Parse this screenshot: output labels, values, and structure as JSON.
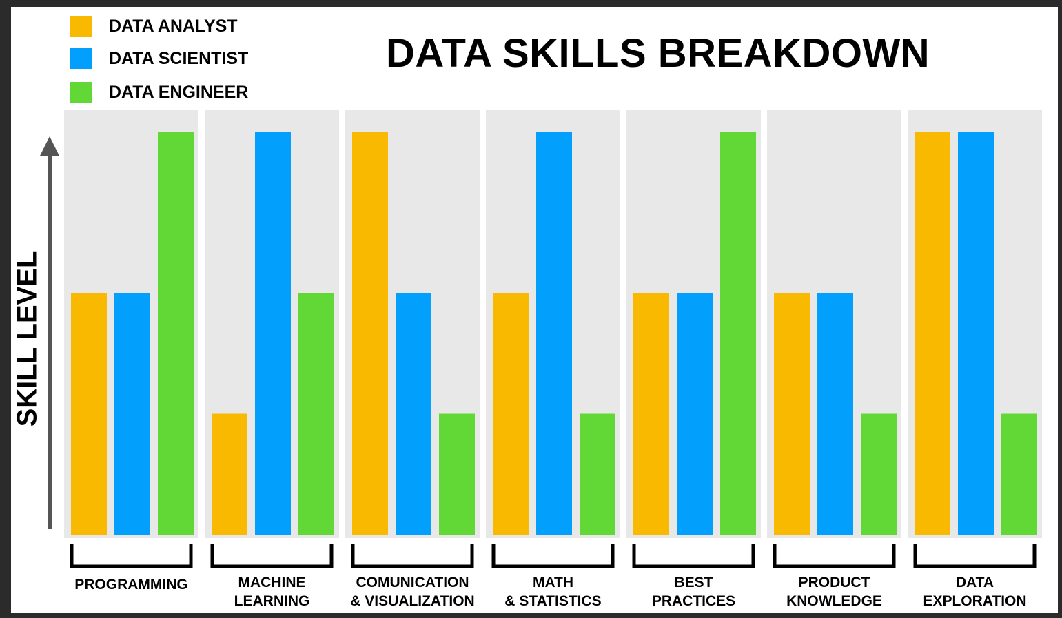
{
  "legend": {
    "items": [
      {
        "label": "DATA ANALYST",
        "color": "#f8b900"
      },
      {
        "label": "DATA SCIENTIST",
        "color": "#02a0fc"
      },
      {
        "label": "DATA ENGINEER",
        "color": "#62d836"
      }
    ]
  },
  "chart_data": {
    "type": "bar",
    "title": "DATA SKILLS BREAKDOWN",
    "ylabel": "SKILL LEVEL",
    "xlabel": "",
    "categories": [
      "PROGRAMMING",
      "MACHINE\nLEARNING",
      "COMUNICATION\n& VISUALIZATION",
      "MATH\n& STATISTICS",
      "BEST\nPRACTICES",
      "PRODUCT\nKNOWLEDGE",
      "DATA\nEXPLORATION"
    ],
    "series": [
      {
        "name": "DATA ANALYST",
        "color": "#f8b900",
        "values": [
          3,
          1.5,
          5,
          3,
          3,
          3,
          5
        ]
      },
      {
        "name": "DATA SCIENTIST",
        "color": "#02a0fc",
        "values": [
          3,
          5,
          3,
          5,
          3,
          3,
          5
        ]
      },
      {
        "name": "DATA ENGINEER",
        "color": "#62d836",
        "values": [
          5,
          3,
          1.5,
          1.5,
          5,
          1.5,
          1.5
        ]
      }
    ],
    "ylim": [
      0,
      5
    ],
    "grid": false,
    "legend_position": "top-left",
    "panel_color": "#e8e8e8"
  }
}
